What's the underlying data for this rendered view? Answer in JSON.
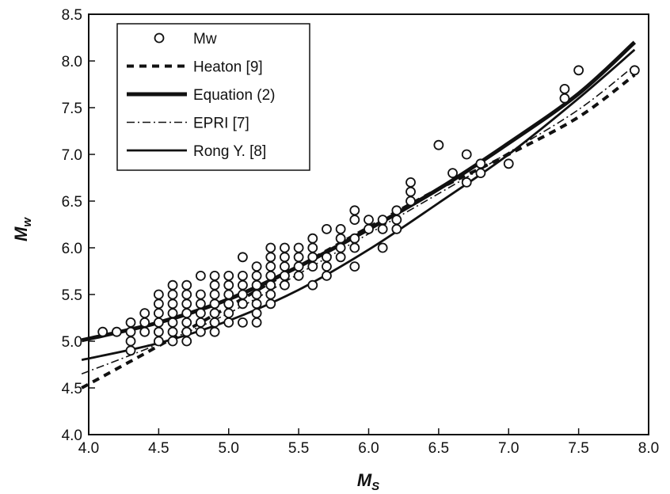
{
  "chart_data": {
    "type": "scatter",
    "title": "",
    "xlabel": {
      "main": "M",
      "sub": "S"
    },
    "ylabel": {
      "main": "M",
      "sub": "w"
    },
    "xlim": [
      4.0,
      8.0
    ],
    "ylim": [
      4.0,
      8.5
    ],
    "xticks": [
      "4.0",
      "4.5",
      "5.0",
      "5.5",
      "6.0",
      "6.5",
      "7.0",
      "7.5",
      "8.0"
    ],
    "yticks": [
      "4.0",
      "4.5",
      "5.0",
      "5.5",
      "6.0",
      "6.5",
      "7.0",
      "7.5",
      "8.0",
      "8.5"
    ],
    "grid": false,
    "legend_position": "top-left",
    "legend": [
      "Mw",
      "Heaton [9]",
      "Equation (2)",
      "EPRI [7]",
      "Rong Y. [8]"
    ],
    "points": {
      "name": "Mw",
      "data": [
        [
          4.1,
          5.1
        ],
        [
          4.2,
          5.1
        ],
        [
          4.3,
          4.9
        ],
        [
          4.3,
          5.0
        ],
        [
          4.3,
          5.1
        ],
        [
          4.3,
          5.2
        ],
        [
          4.4,
          5.1
        ],
        [
          4.4,
          5.2
        ],
        [
          4.4,
          5.3
        ],
        [
          4.5,
          5.0
        ],
        [
          4.5,
          5.1
        ],
        [
          4.5,
          5.2
        ],
        [
          4.5,
          5.3
        ],
        [
          4.5,
          5.4
        ],
        [
          4.5,
          5.5
        ],
        [
          4.6,
          5.0
        ],
        [
          4.6,
          5.1
        ],
        [
          4.6,
          5.2
        ],
        [
          4.6,
          5.3
        ],
        [
          4.6,
          5.4
        ],
        [
          4.6,
          5.5
        ],
        [
          4.6,
          5.6
        ],
        [
          4.7,
          5.0
        ],
        [
          4.7,
          5.1
        ],
        [
          4.7,
          5.2
        ],
        [
          4.7,
          5.3
        ],
        [
          4.7,
          5.4
        ],
        [
          4.7,
          5.5
        ],
        [
          4.7,
          5.6
        ],
        [
          4.8,
          5.1
        ],
        [
          4.8,
          5.2
        ],
        [
          4.8,
          5.3
        ],
        [
          4.8,
          5.4
        ],
        [
          4.8,
          5.5
        ],
        [
          4.8,
          5.7
        ],
        [
          4.9,
          5.1
        ],
        [
          4.9,
          5.2
        ],
        [
          4.9,
          5.3
        ],
        [
          4.9,
          5.4
        ],
        [
          4.9,
          5.5
        ],
        [
          4.9,
          5.6
        ],
        [
          4.9,
          5.7
        ],
        [
          5.0,
          5.2
        ],
        [
          5.0,
          5.3
        ],
        [
          5.0,
          5.4
        ],
        [
          5.0,
          5.5
        ],
        [
          5.0,
          5.6
        ],
        [
          5.0,
          5.7
        ],
        [
          5.1,
          5.2
        ],
        [
          5.1,
          5.4
        ],
        [
          5.1,
          5.5
        ],
        [
          5.1,
          5.6
        ],
        [
          5.1,
          5.7
        ],
        [
          5.1,
          5.9
        ],
        [
          5.2,
          5.2
        ],
        [
          5.2,
          5.3
        ],
        [
          5.2,
          5.4
        ],
        [
          5.2,
          5.5
        ],
        [
          5.2,
          5.6
        ],
        [
          5.2,
          5.7
        ],
        [
          5.2,
          5.8
        ],
        [
          5.3,
          5.4
        ],
        [
          5.3,
          5.5
        ],
        [
          5.3,
          5.6
        ],
        [
          5.3,
          5.7
        ],
        [
          5.3,
          5.8
        ],
        [
          5.3,
          5.9
        ],
        [
          5.3,
          6.0
        ],
        [
          5.4,
          5.6
        ],
        [
          5.4,
          5.7
        ],
        [
          5.4,
          5.8
        ],
        [
          5.4,
          5.9
        ],
        [
          5.4,
          6.0
        ],
        [
          5.5,
          5.7
        ],
        [
          5.5,
          5.8
        ],
        [
          5.5,
          5.9
        ],
        [
          5.5,
          6.0
        ],
        [
          5.6,
          5.6
        ],
        [
          5.6,
          5.8
        ],
        [
          5.6,
          5.9
        ],
        [
          5.6,
          6.0
        ],
        [
          5.6,
          6.1
        ],
        [
          5.7,
          5.7
        ],
        [
          5.7,
          5.8
        ],
        [
          5.7,
          5.9
        ],
        [
          5.7,
          6.2
        ],
        [
          5.8,
          5.9
        ],
        [
          5.8,
          6.0
        ],
        [
          5.8,
          6.1
        ],
        [
          5.8,
          6.2
        ],
        [
          5.9,
          5.8
        ],
        [
          5.9,
          6.0
        ],
        [
          5.9,
          6.1
        ],
        [
          5.9,
          6.3
        ],
        [
          5.9,
          6.4
        ],
        [
          6.0,
          6.2
        ],
        [
          6.0,
          6.3
        ],
        [
          6.1,
          6.0
        ],
        [
          6.1,
          6.2
        ],
        [
          6.1,
          6.3
        ],
        [
          6.2,
          6.2
        ],
        [
          6.2,
          6.3
        ],
        [
          6.2,
          6.4
        ],
        [
          6.3,
          6.5
        ],
        [
          6.3,
          6.6
        ],
        [
          6.3,
          6.7
        ],
        [
          6.5,
          7.1
        ],
        [
          6.6,
          6.8
        ],
        [
          6.7,
          6.7
        ],
        [
          6.7,
          7.0
        ],
        [
          6.8,
          6.8
        ],
        [
          6.8,
          6.9
        ],
        [
          7.0,
          6.9
        ],
        [
          7.4,
          7.6
        ],
        [
          7.4,
          7.7
        ],
        [
          7.5,
          7.9
        ],
        [
          7.9,
          7.9
        ]
      ]
    },
    "series": [
      {
        "name": "Heaton [9]",
        "style": "dashed",
        "x": [
          3.95,
          4.5,
          5.0,
          5.5,
          6.0,
          6.5,
          7.0,
          7.5,
          7.9
        ],
        "y": [
          4.5,
          4.95,
          5.37,
          5.8,
          6.22,
          6.63,
          7.0,
          7.4,
          7.85
        ]
      },
      {
        "name": "Equation (2)",
        "style": "thick",
        "x": [
          3.95,
          4.5,
          5.0,
          5.5,
          6.0,
          6.5,
          7.0,
          7.5,
          7.9
        ],
        "y": [
          5.01,
          5.2,
          5.45,
          5.8,
          6.2,
          6.63,
          7.12,
          7.65,
          8.2
        ]
      },
      {
        "name": "EPRI [7]",
        "style": "dashdot",
        "x": [
          3.95,
          4.5,
          5.0,
          5.5,
          6.0,
          6.5,
          7.0,
          7.5,
          7.9
        ],
        "y": [
          4.65,
          4.97,
          5.3,
          5.72,
          6.15,
          6.58,
          7.02,
          7.48,
          7.95
        ]
      },
      {
        "name": "Rong Y. [8]",
        "style": "solid",
        "x": [
          3.95,
          4.5,
          5.0,
          5.5,
          6.0,
          6.5,
          7.0,
          7.5,
          7.9
        ],
        "y": [
          4.8,
          4.98,
          5.22,
          5.55,
          5.98,
          6.48,
          7.0,
          7.6,
          8.12
        ]
      }
    ]
  }
}
